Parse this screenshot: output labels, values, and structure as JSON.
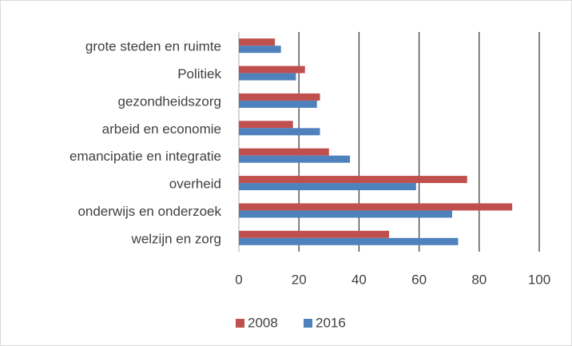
{
  "chart_data": {
    "type": "bar",
    "orientation": "horizontal",
    "categories": [
      "grote steden en ruimte",
      "Politiek",
      "gezondheidszorg",
      "arbeid en economie",
      "emancipatie en integratie",
      "overheid",
      "onderwijs en onderzoek",
      "welzijn en zorg"
    ],
    "series": [
      {
        "name": "2008",
        "color": "#c0504d",
        "values": [
          12,
          22,
          27,
          18,
          30,
          76,
          91,
          50
        ]
      },
      {
        "name": "2016",
        "color": "#4f81bd",
        "values": [
          14,
          19,
          26,
          27,
          37,
          59,
          71,
          73
        ]
      }
    ],
    "xlim": [
      0,
      100
    ],
    "xticks": [
      0,
      20,
      40,
      60,
      80,
      100
    ],
    "grid": true,
    "legend": "bottom"
  }
}
